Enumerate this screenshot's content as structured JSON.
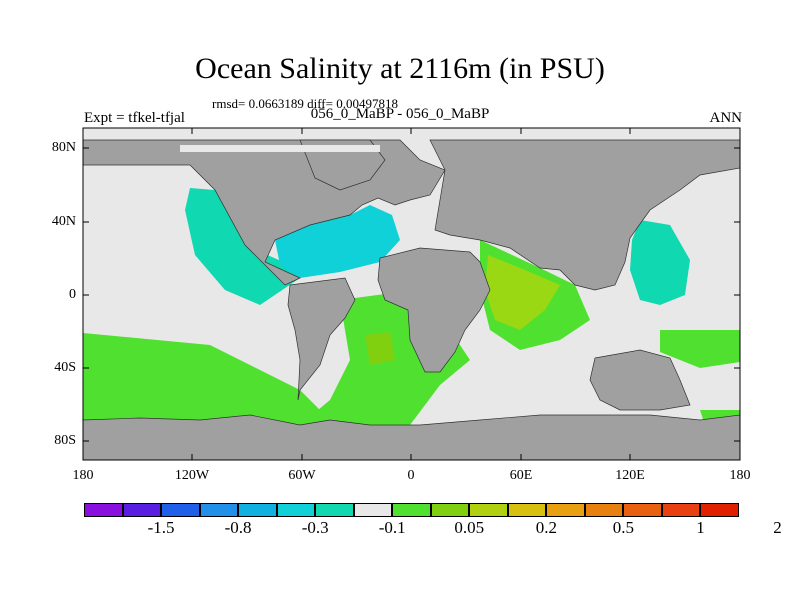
{
  "plot": {
    "title": "Ocean Salinity at 2116m (in PSU)",
    "stats": "rmsd= 0.0663189 diff= 0.00497818",
    "runs": "056_0_MaBP - 056_0_MaBP",
    "left_string": "Expt = tfkel-tfjal",
    "right_string": "ANN"
  },
  "map": {
    "lat_ticks": [
      "80N",
      "40N",
      "0",
      "40S",
      "80S"
    ],
    "lon_ticks": [
      "180",
      "120W",
      "60W",
      "0",
      "60E",
      "120E",
      "180"
    ],
    "land_color": "#a0a0a0",
    "zero_band_color": "#e8e8e8"
  },
  "colorbar": {
    "colors": [
      "#8a10e0",
      "#5a1ee0",
      "#2060e8",
      "#2090e8",
      "#10b0e0",
      "#10d0d8",
      "#10d8b0",
      "#e8e8e8",
      "#50e030",
      "#80d010",
      "#b0d010",
      "#d8c010",
      "#e8a010",
      "#e88010",
      "#e86010",
      "#e84010",
      "#e02000"
    ],
    "labels": [
      "-1.5",
      "-0.8",
      "-0.3",
      "-0.1",
      "0.05",
      "0.2",
      "0.5",
      "1",
      "2"
    ]
  }
}
